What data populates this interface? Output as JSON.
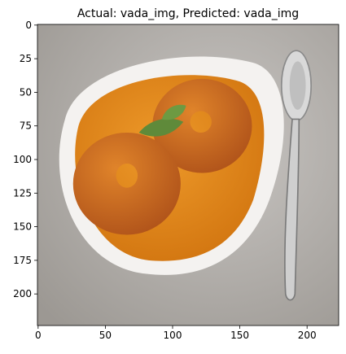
{
  "chart_data": {
    "type": "image",
    "title": "Actual: vada_img, Predicted: vada_img",
    "xlim": [
      -0.5,
      223.5
    ],
    "ylim": [
      223.5,
      -0.5
    ],
    "xticks": [
      0,
      50,
      100,
      150,
      200
    ],
    "yticks": [
      0,
      25,
      50,
      75,
      100,
      125,
      150,
      175,
      200
    ]
  }
}
